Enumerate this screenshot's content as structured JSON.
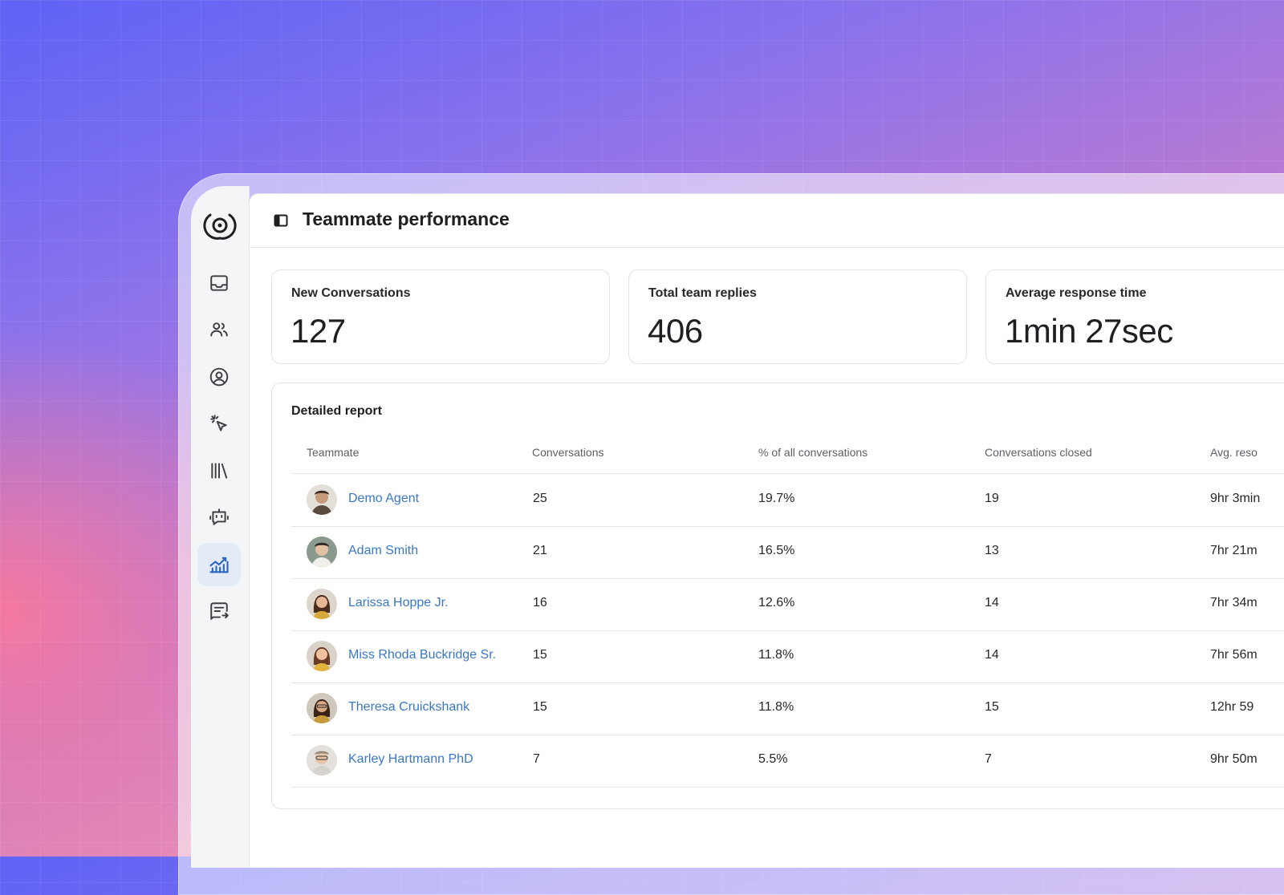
{
  "header": {
    "title": "Teammate performance"
  },
  "sidebar": {
    "items": [
      {
        "name": "inbox-icon"
      },
      {
        "name": "team-icon"
      },
      {
        "name": "contacts-icon"
      },
      {
        "name": "sparkle-cursor-icon"
      },
      {
        "name": "library-icon"
      },
      {
        "name": "bot-icon"
      },
      {
        "name": "reports-chart-icon",
        "active": true
      },
      {
        "name": "message-forward-icon"
      }
    ]
  },
  "stats": [
    {
      "label": "New Conversations",
      "value": "127"
    },
    {
      "label": "Total team replies",
      "value": "406"
    },
    {
      "label": "Average response time",
      "value": "1min 27sec"
    }
  ],
  "report": {
    "title": "Detailed report",
    "columns": [
      "Teammate",
      "Conversations",
      "% of all conversations",
      "Conversations closed",
      "Avg. reso"
    ],
    "rows": [
      {
        "name": "Demo Agent",
        "conversations": "25",
        "percent": "19.7%",
        "closed": "19",
        "avg": "9hr 3min"
      },
      {
        "name": "Adam Smith",
        "conversations": "21",
        "percent": "16.5%",
        "closed": "13",
        "avg": "7hr 21m"
      },
      {
        "name": "Larissa Hoppe Jr.",
        "conversations": "16",
        "percent": "12.6%",
        "closed": "14",
        "avg": "7hr 34m"
      },
      {
        "name": "Miss Rhoda Buckridge Sr.",
        "conversations": "15",
        "percent": "11.8%",
        "closed": "14",
        "avg": "7hr 56m"
      },
      {
        "name": "Theresa Cruickshank",
        "conversations": "15",
        "percent": "11.8%",
        "closed": "15",
        "avg": "12hr 59"
      },
      {
        "name": "Karley Hartmann PhD",
        "conversations": "7",
        "percent": "5.5%",
        "closed": "7",
        "avg": "9hr 50m"
      }
    ]
  },
  "colors": {
    "accent": "#3a78c6",
    "active_nav_bg": "#e3ebf7"
  }
}
